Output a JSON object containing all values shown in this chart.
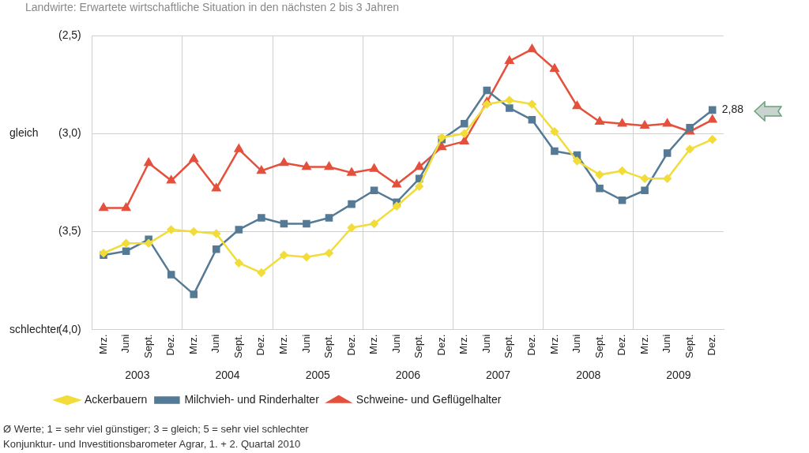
{
  "chart_data": {
    "type": "line",
    "title": "Landwirte: Erwartete wirtschaftliche Situation in den nächsten 2 bis 3 Jahren",
    "categories": [
      "Mrz.",
      "Juni",
      "Sept.",
      "Dez.",
      "Mrz.",
      "Juni",
      "Sept.",
      "Dez.",
      "Mrz.",
      "Juni",
      "Sept.",
      "Dez.",
      "Mrz.",
      "Juni",
      "Sept.",
      "Dez.",
      "Mrz.",
      "Juni",
      "Sept.",
      "Dez.",
      "Mrz.",
      "Juni",
      "Sept.",
      "Dez.",
      "Mrz.",
      "Juni",
      "Sept.",
      "Dez."
    ],
    "series": [
      {
        "name": "Ackerbauern",
        "color": "#f2dc3a",
        "marker": "diamond",
        "values": [
          3.61,
          3.56,
          3.56,
          3.49,
          3.5,
          3.51,
          3.66,
          3.71,
          3.62,
          3.63,
          3.61,
          3.48,
          3.46,
          3.37,
          3.27,
          3.02,
          3.0,
          2.85,
          2.83,
          2.85,
          2.99,
          3.14,
          3.21,
          3.19,
          3.23,
          3.23,
          3.08,
          3.03
        ]
      },
      {
        "name": "Milchvieh- und Rinderhalter",
        "color": "#557a95",
        "marker": "square",
        "values": [
          3.62,
          3.6,
          3.54,
          3.72,
          3.82,
          3.59,
          3.49,
          3.43,
          3.46,
          3.46,
          3.43,
          3.36,
          3.29,
          3.35,
          3.23,
          3.03,
          2.95,
          2.78,
          2.87,
          2.93,
          3.09,
          3.11,
          3.28,
          3.34,
          3.29,
          3.1,
          2.97,
          2.88
        ],
        "value_labels": [
          null,
          null,
          null,
          null,
          null,
          null,
          null,
          null,
          null,
          null,
          null,
          null,
          null,
          null,
          null,
          null,
          null,
          null,
          null,
          null,
          null,
          null,
          null,
          null,
          null,
          null,
          null,
          "2,88"
        ]
      },
      {
        "name": "Schweine- und Geflügelhalter",
        "color": "#e5503c",
        "marker": "triangle",
        "values": [
          3.38,
          3.38,
          3.15,
          3.24,
          3.13,
          3.28,
          3.08,
          3.19,
          3.15,
          3.17,
          3.17,
          3.2,
          3.18,
          3.26,
          3.17,
          3.07,
          3.04,
          2.84,
          2.63,
          2.57,
          2.67,
          2.86,
          2.94,
          2.95,
          2.96,
          2.95,
          2.99,
          2.93
        ]
      }
    ],
    "ylim": [
      4.0,
      2.5
    ],
    "yticks": [
      {
        "value": 2.5,
        "label": "(2,5)"
      },
      {
        "value": 3.0,
        "label": "(3,0)"
      },
      {
        "value": 3.5,
        "label": "(3,5)"
      },
      {
        "value": 4.0,
        "label": "(4,0)"
      }
    ],
    "grid": true,
    "legend": "bottom",
    "line_style": "solid",
    "annotations": [
      "2003",
      "2004",
      "2005",
      "2006",
      "2007",
      "2008",
      "2009",
      "gleich",
      "schlechter",
      "Ø Werte; 1 = sehr viel günstiger; 3 = gleich; 5 = sehr viel schlechter",
      "Konjunktur- und Investitionsbarometer Agrar, 1. + 2. Quartal 2010"
    ]
  }
}
